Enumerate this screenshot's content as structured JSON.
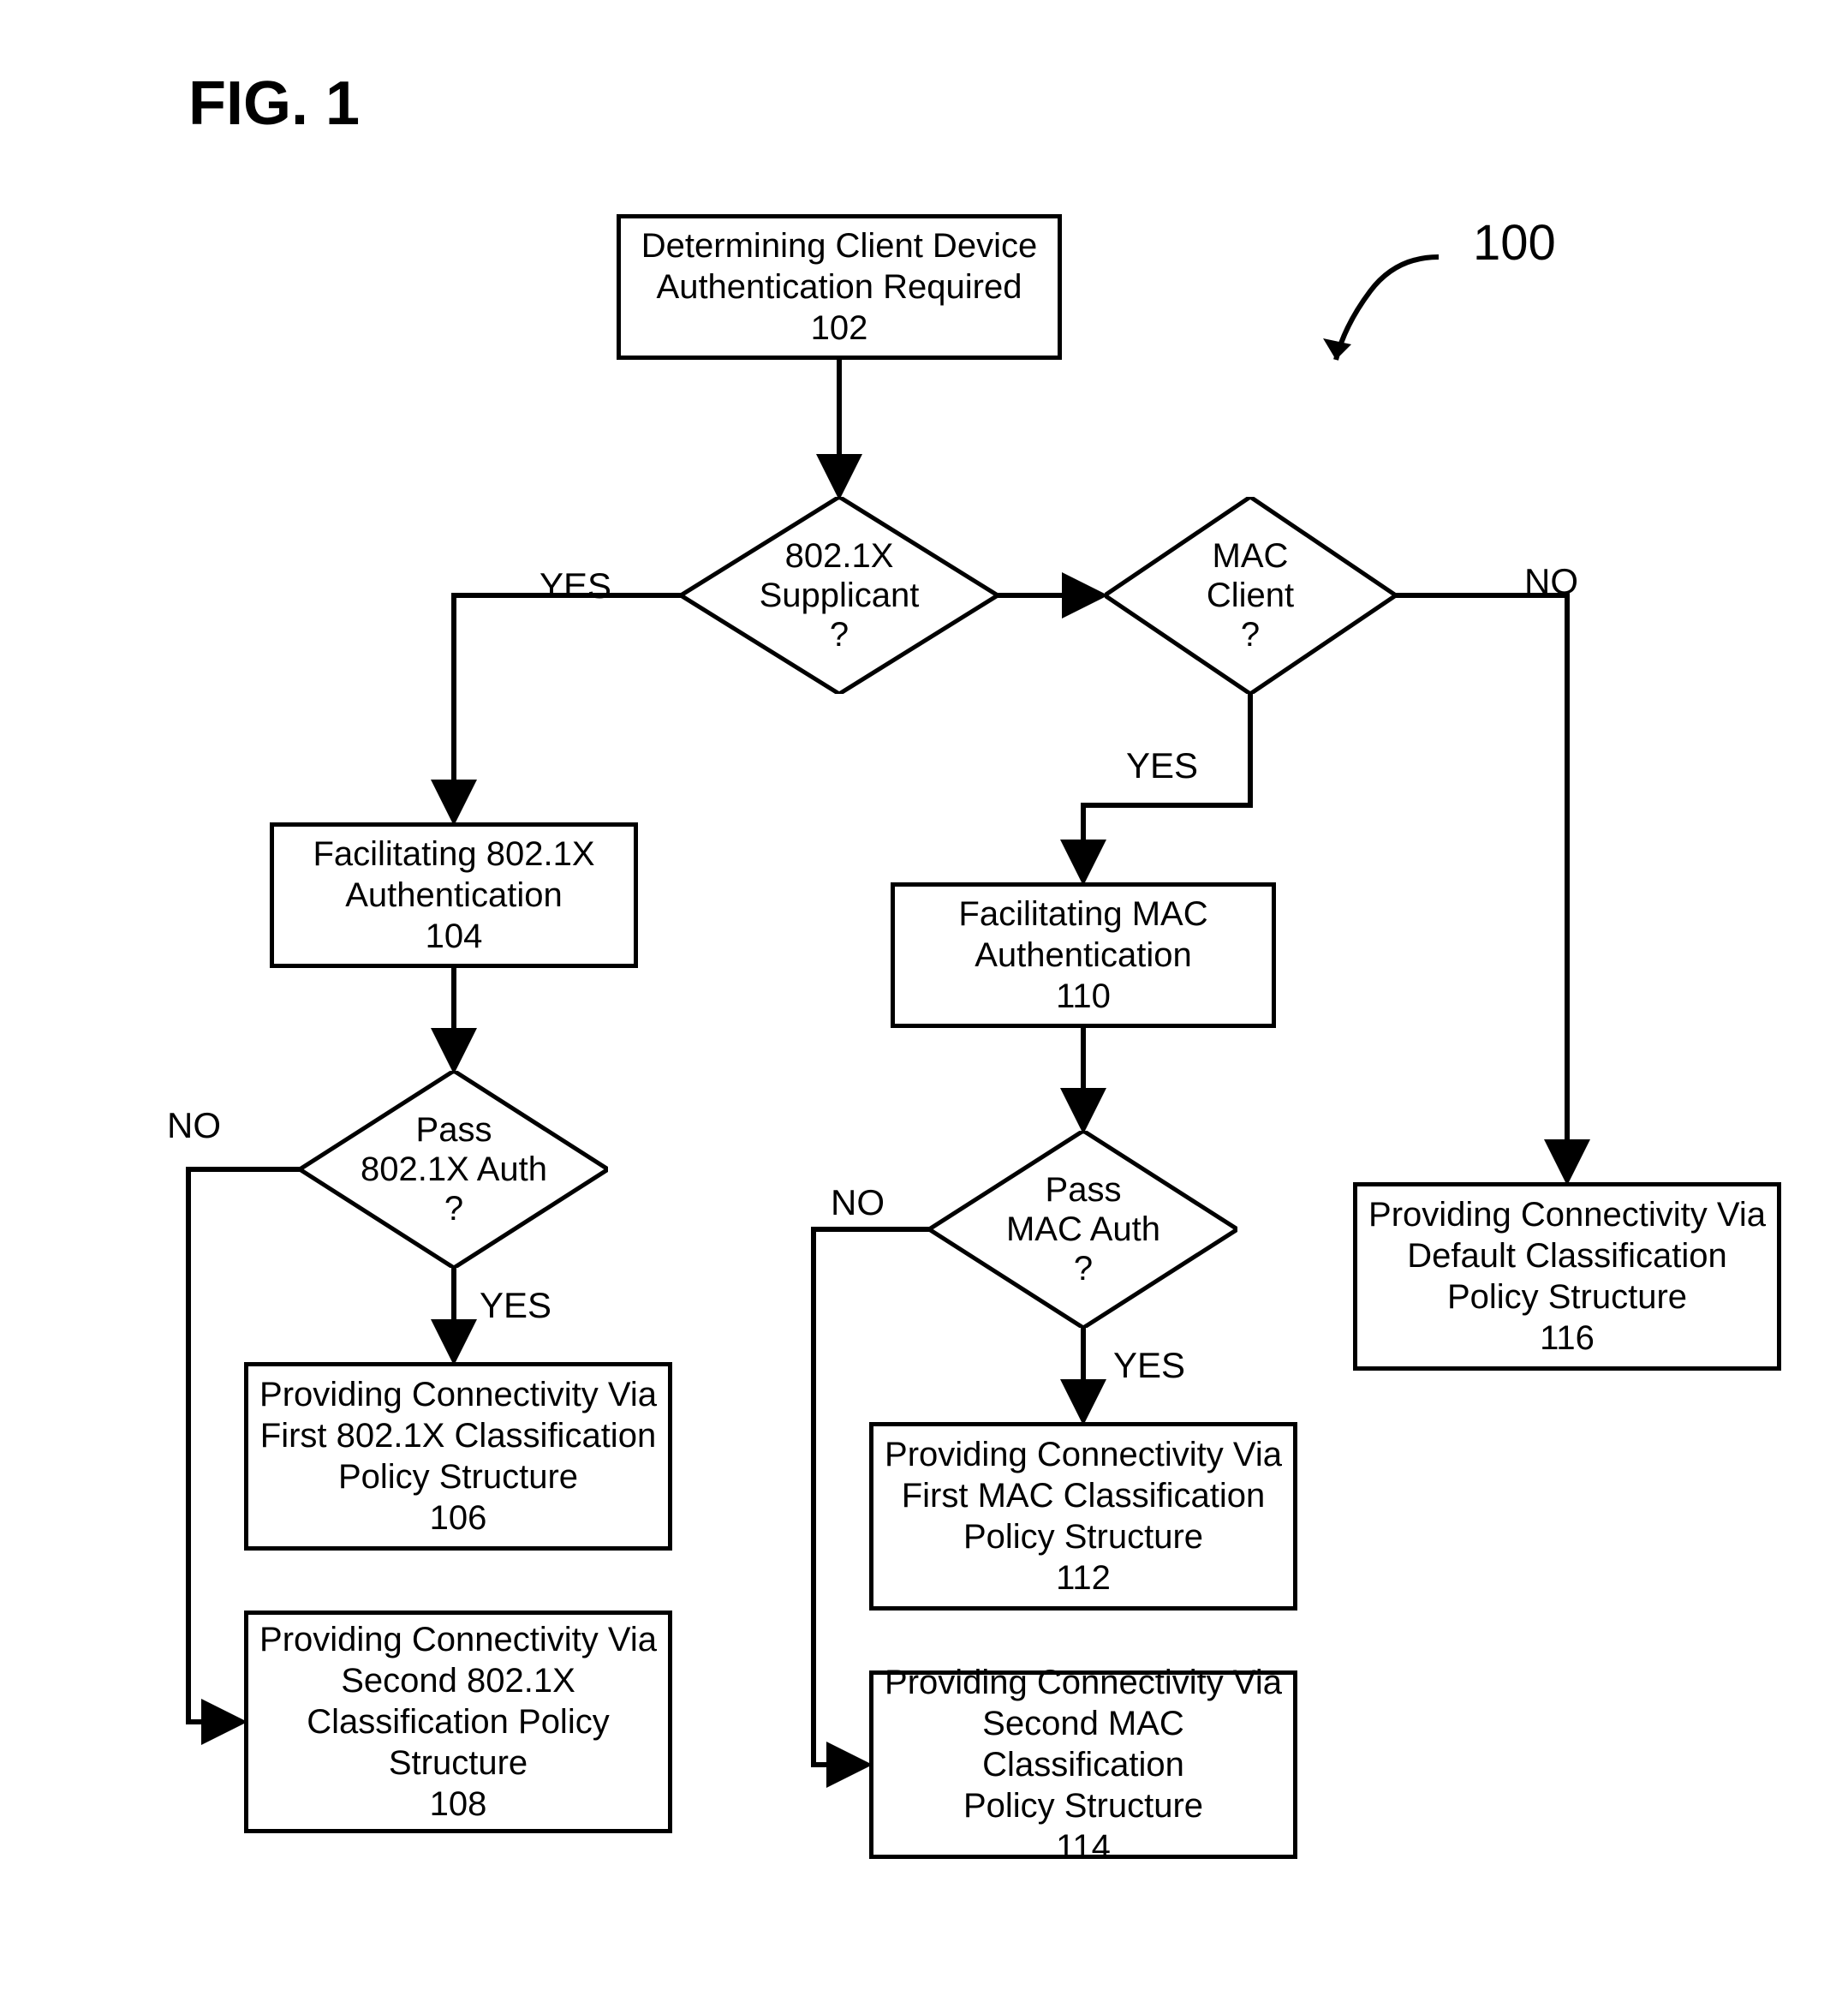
{
  "figure_title": "FIG. 1",
  "reference_numeral": "100",
  "colors": {
    "stroke": "#000000",
    "background": "#ffffff"
  },
  "stroke_width": 5,
  "fontsize_box": 40,
  "fontsize_label": 42,
  "fontsize_title": 72,
  "nodes": {
    "n102": {
      "type": "box",
      "text": "Determining Client Device\nAuthentication Required\n102"
    },
    "d_supplicant": {
      "type": "diamond",
      "text": "802.1X\nSupplicant\n?"
    },
    "d_macclient": {
      "type": "diamond",
      "text": "MAC\nClient\n?"
    },
    "n104": {
      "type": "box",
      "text": "Facilitating  802.1X\nAuthentication\n104"
    },
    "d_pass8021x": {
      "type": "diamond",
      "text": "Pass\n802.1X Auth\n?"
    },
    "n106": {
      "type": "box",
      "text": "Providing Connectivity Via\nFirst 802.1X Classification\nPolicy Structure\n106"
    },
    "n108": {
      "type": "box",
      "text": "Providing Connectivity Via\nSecond 802.1X\nClassification Policy\nStructure\n108"
    },
    "n110": {
      "type": "box",
      "text": "Facilitating MAC\nAuthentication\n110"
    },
    "d_passmac": {
      "type": "diamond",
      "text": "Pass\nMAC Auth\n?"
    },
    "n112": {
      "type": "box",
      "text": "Providing Connectivity Via\nFirst MAC Classification\nPolicy Structure\n112"
    },
    "n114": {
      "type": "box",
      "text": "Providing Connectivity Via\nSecond MAC Classification\nPolicy Structure\n114"
    },
    "n116": {
      "type": "box",
      "text": "Providing Connectivity Via\nDefault Classification\nPolicy Structure\n116"
    }
  },
  "edge_labels": {
    "yes1": "YES",
    "yes2": "YES",
    "yes3": "YES",
    "yes4": "YES",
    "no1": "NO",
    "no2": "NO",
    "no3": "NO"
  }
}
